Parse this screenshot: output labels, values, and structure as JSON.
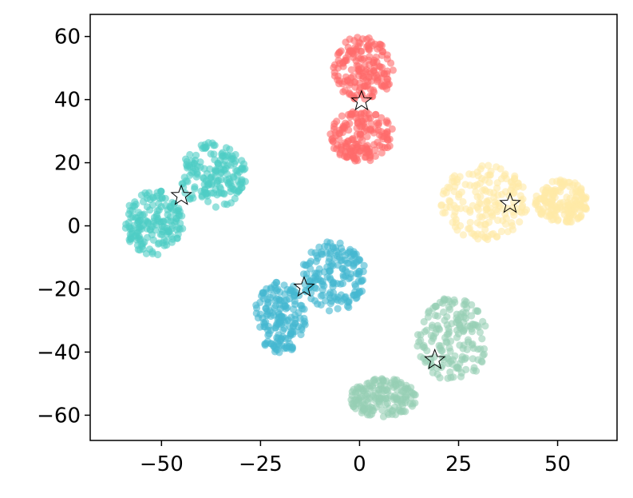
{
  "chart_data": {
    "type": "scatter",
    "title": "",
    "xlabel": "",
    "ylabel": "",
    "xlim": [
      -68,
      65
    ],
    "ylim": [
      -68,
      67
    ],
    "xticks": [
      -50,
      -25,
      0,
      25,
      50
    ],
    "yticks": [
      -60,
      -40,
      -20,
      0,
      20,
      40,
      60
    ],
    "xtick_labels": [
      "−50",
      "−25",
      "0",
      "25",
      "50"
    ],
    "ytick_labels": [
      "−60",
      "−40",
      "−20",
      "0",
      "20",
      "40",
      "60"
    ],
    "grid": false,
    "legend": "none",
    "clusters": [
      {
        "color": "#FF6B6B",
        "centroid": [
          0.5,
          39.5
        ],
        "blobs": [
          {
            "x": [
              -8,
              9
            ],
            "y": [
              20,
              37
            ]
          },
          {
            "x": [
              -7,
              9
            ],
            "y": [
              39,
              61
            ]
          }
        ]
      },
      {
        "color": "#4ECDC4",
        "centroid": [
          -45,
          9.5
        ],
        "blobs": [
          {
            "x": [
              -60,
              -44
            ],
            "y": [
              -10,
              12
            ]
          },
          {
            "x": [
              -46,
              -28
            ],
            "y": [
              5,
              27
            ]
          }
        ]
      },
      {
        "color": "#45B7D1",
        "centroid": [
          -14,
          -19.5
        ],
        "blobs": [
          {
            "x": [
              -27,
              -13
            ],
            "y": [
              -41,
              -17
            ]
          },
          {
            "x": [
              -15,
              2
            ],
            "y": [
              -28,
              -4
            ]
          }
        ]
      },
      {
        "color": "#FFEAA7",
        "centroid": [
          38,
          7
        ],
        "blobs": [
          {
            "x": [
              20,
              43
            ],
            "y": [
              -5,
              20
            ]
          },
          {
            "x": [
              44,
              58
            ],
            "y": [
              0,
              15
            ]
          }
        ]
      },
      {
        "color": "#96CEB4",
        "centroid": [
          19,
          -42.5
        ],
        "blobs": [
          {
            "x": [
              -3,
              15
            ],
            "y": [
              -61,
              -48
            ]
          },
          {
            "x": [
              14,
              33
            ],
            "y": [
              -50,
              -22
            ]
          }
        ]
      }
    ]
  }
}
